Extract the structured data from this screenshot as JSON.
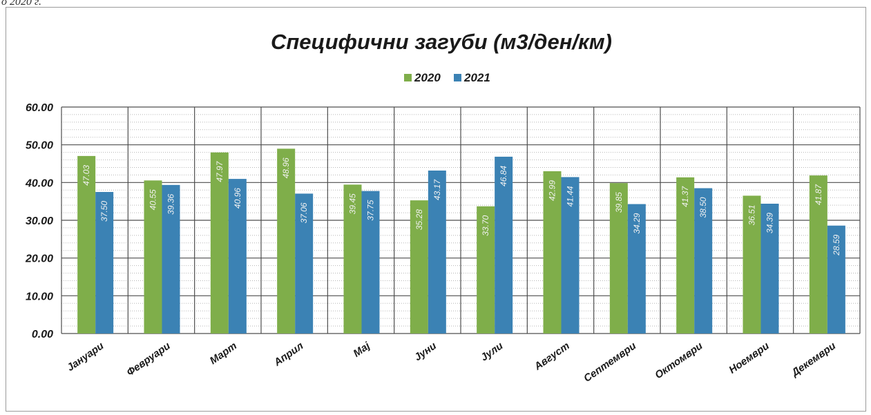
{
  "page": {
    "top_text": "о 2020 г."
  },
  "colors": {
    "series_2020": "#7fae4a",
    "series_2021": "#3b82b4",
    "grid_major": "#4d4d4d",
    "grid_minor": "#b5b5b5",
    "label_text": "#f2f2f2"
  },
  "chart_data": {
    "type": "bar",
    "title": "Специфични загуби (м3/ден/км)",
    "xlabel": "",
    "ylabel": "",
    "ylim": [
      0,
      60
    ],
    "yticks": [
      "0.00",
      "10.00",
      "20.00",
      "30.00",
      "40.00",
      "50.00",
      "60.00"
    ],
    "grid": true,
    "legend_position": "top",
    "categories": [
      "Јануари",
      "Февруари",
      "Март",
      "Април",
      "Мај",
      "Јуни",
      "Јули",
      "Август",
      "Септември",
      "Октомври",
      "Ноември",
      "Декември"
    ],
    "series": [
      {
        "name": "2020",
        "values": [
          47.03,
          40.55,
          47.97,
          48.96,
          39.45,
          35.28,
          33.7,
          42.99,
          39.85,
          41.37,
          36.51,
          41.87
        ],
        "labels": [
          "47.03",
          "40.55",
          "47.97",
          "48.96",
          "39.45",
          "35.28",
          "33.70",
          "42.99",
          "39.85",
          "41.37",
          "36.51",
          "41.87"
        ]
      },
      {
        "name": "2021",
        "values": [
          37.5,
          39.36,
          40.96,
          37.06,
          37.75,
          43.17,
          46.84,
          41.44,
          34.29,
          38.5,
          34.39,
          28.59
        ],
        "labels": [
          "37.50",
          "39.36",
          "40.96",
          "37.06",
          "37.75",
          "43.17",
          "46.84",
          "41.44",
          "34.29",
          "38.50",
          "34.39",
          "28.59"
        ]
      }
    ]
  }
}
